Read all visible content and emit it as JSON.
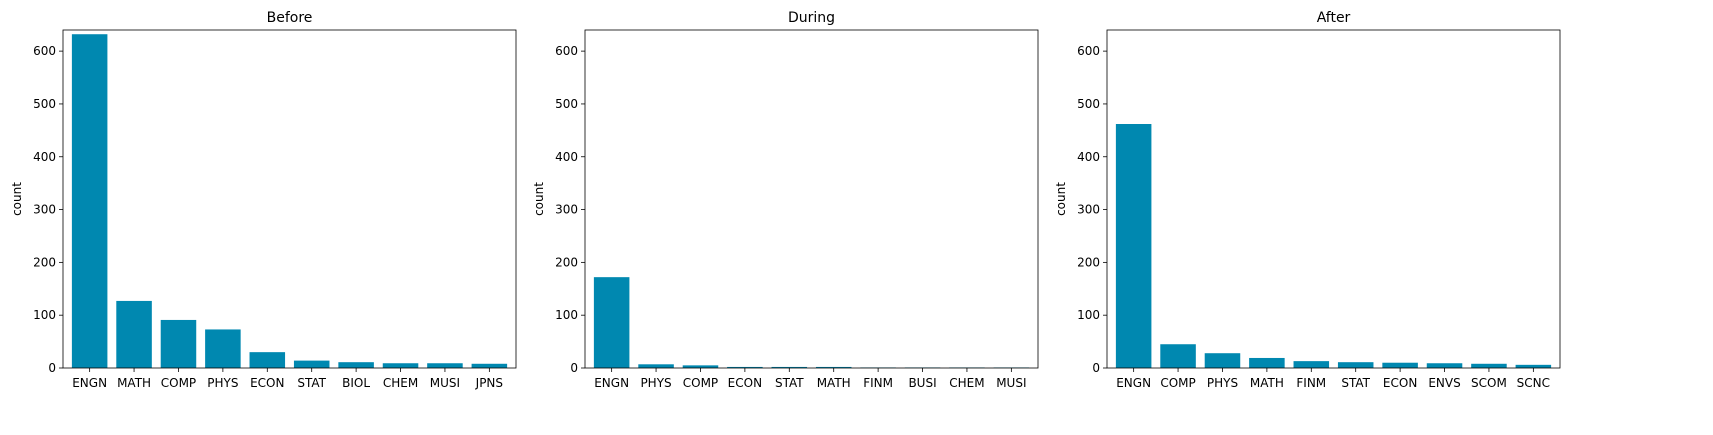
{
  "bar_color": "#0088b0",
  "chart_data": [
    {
      "type": "bar",
      "title": "Before",
      "xlabel": "",
      "ylabel": "count",
      "ylim": [
        0,
        640
      ],
      "yticks": [
        0,
        100,
        200,
        300,
        400,
        500,
        600
      ],
      "grid": false,
      "categories": [
        "ENGN",
        "MATH",
        "COMP",
        "PHYS",
        "ECON",
        "STAT",
        "BIOL",
        "CHEM",
        "MUSI",
        "JPNS"
      ],
      "values": [
        632,
        127,
        91,
        73,
        30,
        14,
        11,
        9,
        9,
        8
      ]
    },
    {
      "type": "bar",
      "title": "During",
      "xlabel": "",
      "ylabel": "count",
      "ylim": [
        0,
        640
      ],
      "yticks": [
        0,
        100,
        200,
        300,
        400,
        500,
        600
      ],
      "grid": false,
      "categories": [
        "ENGN",
        "PHYS",
        "COMP",
        "ECON",
        "STAT",
        "MATH",
        "FINM",
        "BUSI",
        "CHEM",
        "MUSI"
      ],
      "values": [
        172,
        7,
        5,
        2,
        2,
        2,
        1,
        1,
        1,
        1
      ]
    },
    {
      "type": "bar",
      "title": "After",
      "xlabel": "",
      "ylabel": "count",
      "ylim": [
        0,
        640
      ],
      "yticks": [
        0,
        100,
        200,
        300,
        400,
        500,
        600
      ],
      "grid": false,
      "categories": [
        "ENGN",
        "COMP",
        "PHYS",
        "MATH",
        "FINM",
        "STAT",
        "ECON",
        "ENVS",
        "SCOM",
        "SCNC"
      ],
      "values": [
        462,
        45,
        28,
        19,
        13,
        11,
        10,
        9,
        8,
        6
      ]
    }
  ]
}
